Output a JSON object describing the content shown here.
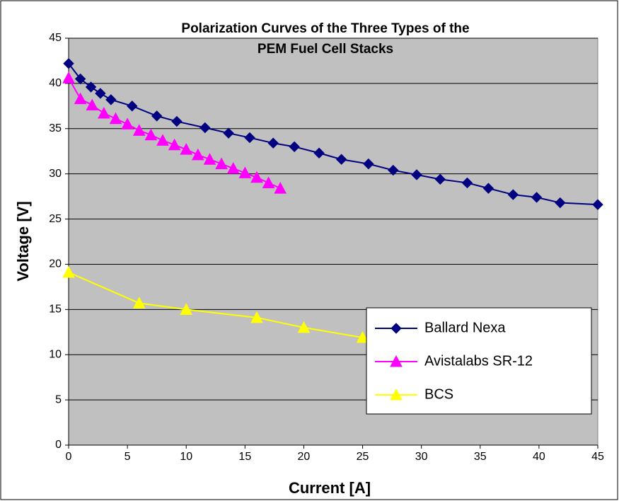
{
  "chart_data": {
    "type": "line",
    "title": "Polarization Curves of the Three Types of the PEM Fuel Cell Stacks",
    "x_label": "Current [A]",
    "y_label": "Voltage [V]",
    "xlim": [
      0,
      45
    ],
    "xticks": [
      0,
      5,
      10,
      15,
      20,
      25,
      30,
      35,
      40,
      45
    ],
    "ylim": [
      0,
      45
    ],
    "yticks": [
      0,
      5,
      10,
      15,
      20,
      25,
      30,
      35,
      40,
      45
    ],
    "grid": true,
    "legend": "lower right",
    "series": [
      {
        "name": "Ballard Nexa",
        "color": "#000080",
        "marker": "diamond",
        "x": [
          0,
          1,
          1.9,
          2.7,
          3.6,
          5.4,
          7.5,
          9.2,
          11.6,
          13.6,
          15.4,
          17.4,
          19.2,
          21.3,
          23.2,
          25.5,
          27.6,
          29.6,
          31.6,
          33.9,
          35.7,
          37.8,
          39.8,
          41.8,
          45
        ],
        "values": [
          42.2,
          40.5,
          39.6,
          38.9,
          38.2,
          37.5,
          36.4,
          35.8,
          35.1,
          34.5,
          34.0,
          33.4,
          33.0,
          32.3,
          31.6,
          31.1,
          30.4,
          29.9,
          29.4,
          29.0,
          28.4,
          27.7,
          27.4,
          26.8,
          26.6
        ]
      },
      {
        "name": "Avistalabs SR-12",
        "color": "#ff00ff",
        "marker": "triangle",
        "x": [
          0,
          1,
          2,
          3,
          4,
          5,
          6,
          7,
          8,
          9,
          10,
          11,
          12,
          13,
          14,
          15,
          16,
          17,
          18
        ],
        "values": [
          40.6,
          38.3,
          37.6,
          36.7,
          36.1,
          35.5,
          34.8,
          34.3,
          33.7,
          33.2,
          32.7,
          32.1,
          31.6,
          31.1,
          30.6,
          30.1,
          29.6,
          29.0,
          28.4
        ]
      },
      {
        "name": "BCS",
        "color": "#ffff00",
        "marker": "triangle",
        "x": [
          0,
          6,
          10,
          16,
          20,
          25
        ],
        "values": [
          19.1,
          15.7,
          15.0,
          14.1,
          13.0,
          11.9
        ]
      }
    ]
  }
}
